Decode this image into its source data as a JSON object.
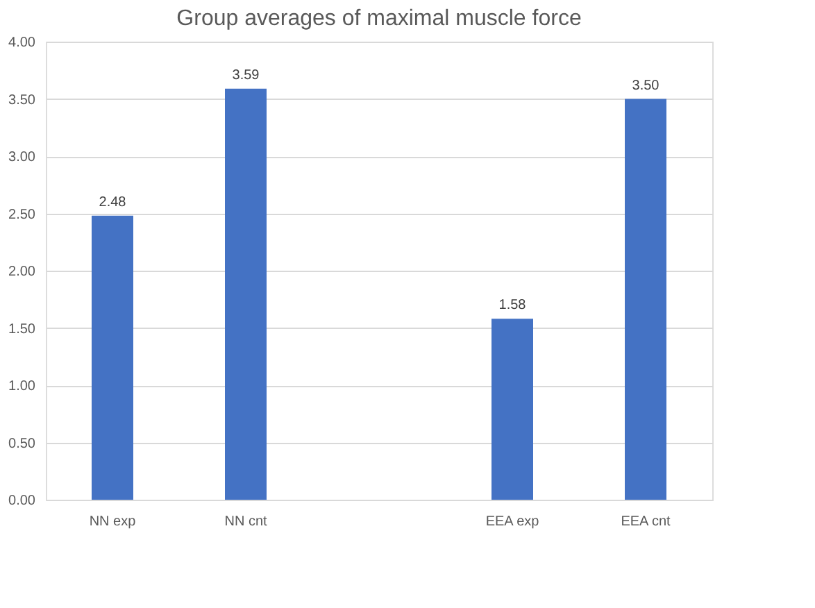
{
  "chart_data": {
    "type": "bar",
    "title": "Group averages of maximal muscle force",
    "categories": [
      "NN exp",
      "NN cnt",
      null,
      "EEA exp",
      "EEA cnt"
    ],
    "values": [
      2.48,
      3.59,
      null,
      1.58,
      3.5
    ],
    "value_labels": [
      "2.48",
      "3.59",
      null,
      "1.58",
      "3.50"
    ],
    "color": "#4472c4",
    "ylim": [
      0,
      4
    ],
    "yticks": [
      {
        "value": 0,
        "label": "0.00"
      },
      {
        "value": 0.5,
        "label": "0.50"
      },
      {
        "value": 1,
        "label": "1.00"
      },
      {
        "value": 1.5,
        "label": "1.50"
      },
      {
        "value": 2,
        "label": "2.00"
      },
      {
        "value": 2.5,
        "label": "2.50"
      },
      {
        "value": 3,
        "label": "3.00"
      },
      {
        "value": 3.5,
        "label": "3.50"
      },
      {
        "value": 4,
        "label": "4.00"
      }
    ],
    "grid": "y"
  }
}
